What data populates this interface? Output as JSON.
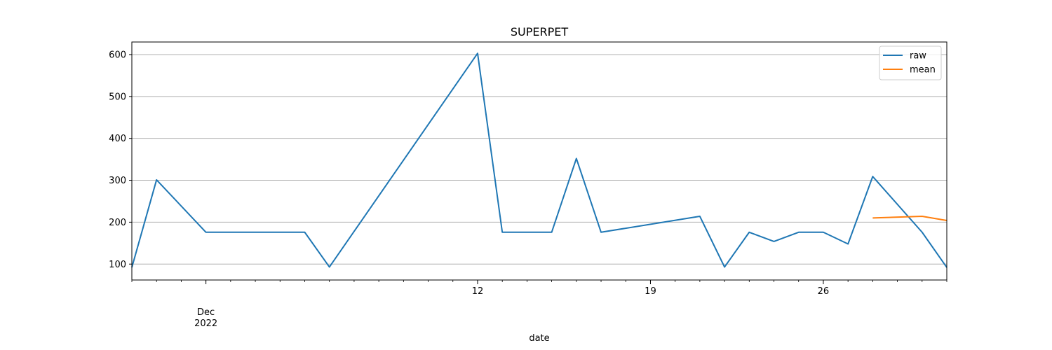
{
  "chart_data": {
    "type": "line",
    "title": "SUPERPET",
    "xlabel": "date",
    "ylabel": "",
    "x": [
      "2022-11-28",
      "2022-11-29",
      "2022-12-01",
      "2022-12-02",
      "2022-12-03",
      "2022-12-04",
      "2022-12-05",
      "2022-12-06",
      "2022-12-12",
      "2022-12-13",
      "2022-12-14",
      "2022-12-15",
      "2022-12-16",
      "2022-12-17",
      "2022-12-21",
      "2022-12-22",
      "2022-12-23",
      "2022-12-24",
      "2022-12-25",
      "2022-12-26",
      "2022-12-27",
      "2022-12-28",
      "2022-12-30",
      "2022-12-31"
    ],
    "series": [
      {
        "name": "raw",
        "color": "#1f77b4",
        "x": [
          "2022-11-28",
          "2022-11-29",
          "2022-12-01",
          "2022-12-02",
          "2022-12-03",
          "2022-12-04",
          "2022-12-05",
          "2022-12-06",
          "2022-12-12",
          "2022-12-13",
          "2022-12-14",
          "2022-12-15",
          "2022-12-16",
          "2022-12-17",
          "2022-12-21",
          "2022-12-22",
          "2022-12-23",
          "2022-12-24",
          "2022-12-25",
          "2022-12-26",
          "2022-12-27",
          "2022-12-28",
          "2022-12-30",
          "2022-12-31"
        ],
        "values": [
          92,
          301,
          176,
          176,
          176,
          176,
          176,
          93,
          603,
          176,
          176,
          176,
          352,
          176,
          214,
          93,
          176,
          154,
          176,
          176,
          148,
          309,
          176,
          92
        ]
      },
      {
        "name": "mean",
        "color": "#ff7f0e",
        "x": [
          "2022-12-28",
          "2022-12-30",
          "2022-12-31"
        ],
        "values": [
          210,
          214,
          204
        ]
      }
    ],
    "xlim": [
      "2022-11-28",
      "2022-12-31"
    ],
    "ylim": [
      62,
      630
    ],
    "yticks": [
      100,
      200,
      300,
      400,
      500,
      600
    ],
    "xticks": [
      {
        "date": "2022-12-01",
        "label": "Dec\n2022"
      },
      {
        "date": "2022-12-12",
        "label": "12"
      },
      {
        "date": "2022-12-19",
        "label": "19"
      },
      {
        "date": "2022-12-26",
        "label": "26"
      }
    ],
    "grid": "y",
    "legend": "top-right"
  }
}
